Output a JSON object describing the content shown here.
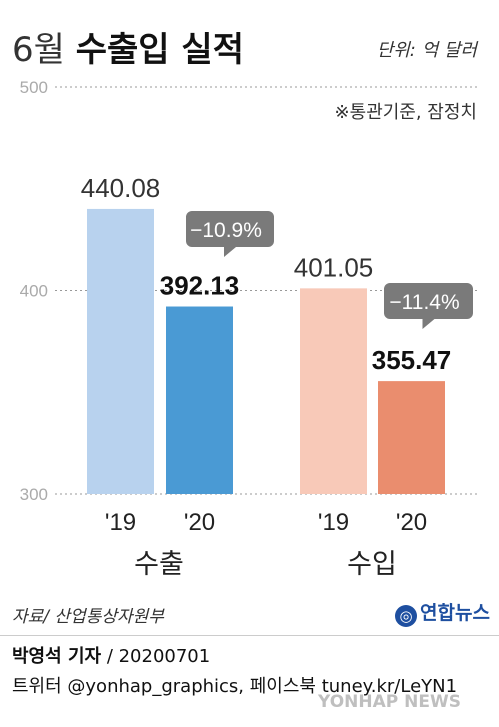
{
  "header": {
    "title_light": "6월",
    "title_bold": "수출입 실적",
    "unit": "단위: 억 달러",
    "note": "※통관기준, 잠정치"
  },
  "chart_data": {
    "type": "bar",
    "title": "6월 수출입 실적",
    "ylim": [
      300,
      500
    ],
    "yticks": [
      "500",
      "400",
      "300"
    ],
    "groups": [
      "수출",
      "수입"
    ],
    "bars": [
      {
        "group": "수출",
        "year": "'19",
        "value": 440.08,
        "label": "440.08",
        "color": "#b8d2ee"
      },
      {
        "group": "수출",
        "year": "'20",
        "value": 392.13,
        "label": "392.13",
        "color": "#4a9ad4"
      },
      {
        "group": "수입",
        "year": "'19",
        "value": 401.05,
        "label": "401.05",
        "color": "#f8c9b8"
      },
      {
        "group": "수입",
        "year": "'20",
        "value": 355.47,
        "label": "355.47",
        "color": "#ea8d6e"
      }
    ],
    "changes": [
      {
        "group": "수출",
        "label": "−10.9%"
      },
      {
        "group": "수입",
        "label": "−11.4%"
      }
    ]
  },
  "footer": {
    "source": "자료/ 산업통상자원부",
    "brand": "연합뉴스",
    "brand_icon": "yonhap-logo-icon",
    "reporter_name": "박영석 기자",
    "reporter_date": "/  20200701",
    "social": "트위터 @yonhap_graphics, 페이스북 tuney.kr/LeYN1",
    "watermark": "YONHAP NEWS"
  }
}
